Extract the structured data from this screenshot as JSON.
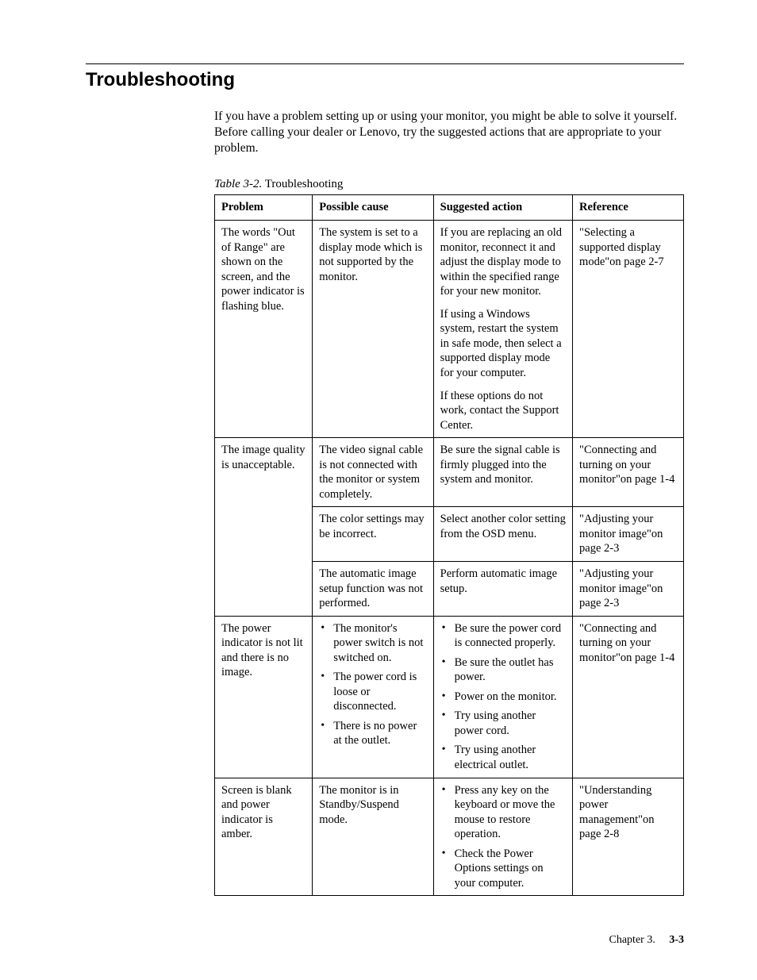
{
  "heading": "Troubleshooting",
  "intro": "If you have a problem setting up or using your monitor, you might be able to solve it yourself. Before calling your dealer or Lenovo, try the suggested actions that are appropriate to your problem.",
  "table_caption_label": "Table 3-2.",
  "table_caption_text": " Troubleshooting",
  "columns": [
    "Problem",
    "Possible cause",
    "Suggested action",
    "Reference"
  ],
  "rows": {
    "r1": {
      "problem": "The words \"Out of Range\" are shown on the screen, and the power indicator is flashing blue.",
      "cause": "The system is set to a display mode which is not supported by the monitor.",
      "action_p1": "If you are replacing an old monitor, reconnect it and adjust the display mode to within the specified range for your new monitor.",
      "action_p2": "If using a Windows system, restart the system in safe mode, then select a supported display mode for your computer.",
      "action_p3": "If these options do not work, contact the Support Center.",
      "reference": "\"Selecting a supported display mode\"on page 2-7"
    },
    "r2": {
      "problem": "The image quality is unacceptable.",
      "a": {
        "cause": "The video signal cable is not connected with the monitor or system completely.",
        "action": "Be sure the signal cable is firmly plugged into the system and monitor.",
        "reference": "\"Connecting and turning on your monitor\"on page 1-4"
      },
      "b": {
        "cause": "The color settings may be incorrect.",
        "action": "Select another color setting from the OSD menu.",
        "reference": "\"Adjusting your monitor image\"on page 2-3"
      },
      "c": {
        "cause": "The automatic image setup function was not performed.",
        "action": "Perform automatic image setup.",
        "reference": "\"Adjusting your monitor image\"on page 2-3"
      }
    },
    "r3": {
      "problem": "The power indicator is not lit and there is no image.",
      "cause_items": [
        "The monitor's power switch is not switched on.",
        "The power cord is loose or disconnected.",
        "There is no power at the outlet."
      ],
      "action_items": [
        "Be sure the power cord is connected properly.",
        "Be sure the outlet has power.",
        "Power on the monitor.",
        "Try using another power cord.",
        "Try using another electrical outlet."
      ],
      "reference": "\"Connecting and turning on your monitor\"on page 1-4"
    },
    "r4": {
      "problem": "Screen is blank and power indicator is amber.",
      "cause": "The monitor is in Standby/Suspend mode.",
      "action_items": [
        "Press any key on the keyboard or move the mouse to restore operation.",
        "Check the Power Options settings on your computer."
      ],
      "reference": "\"Understanding power management\"on page 2-8"
    }
  },
  "footer_chapter": "Chapter 3.",
  "footer_page": "3-3"
}
